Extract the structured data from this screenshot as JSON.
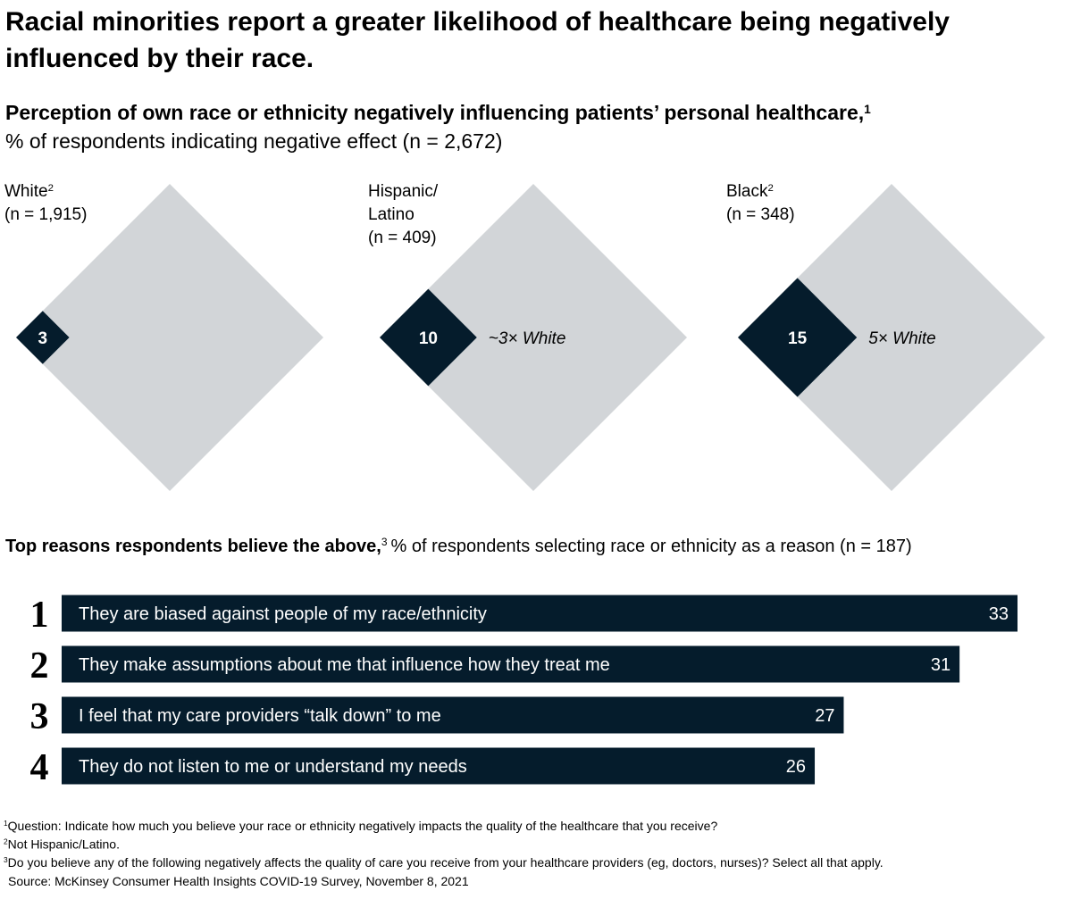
{
  "title": "Racial minorities report a greater likelihood of healthcare being negatively influenced by their race.",
  "chart_data": [
    {
      "type": "diamond",
      "title": "Perception of own race or ethnicity negatively influencing patients’ personal healthcare,",
      "title_note": "1",
      "subtitle": "% of respondents indicating negative effect (n = 2,672)",
      "categories": [
        [
          "White"
        ],
        [
          "Hispanic/",
          "Latino"
        ],
        [
          "Black"
        ]
      ],
      "category_notes": [
        "2",
        null,
        "2"
      ],
      "sample_sizes": [
        "(n = 1,915)",
        "(n = 409)",
        "(n = 348)"
      ],
      "values": [
        3,
        10,
        15
      ],
      "annotations": [
        null,
        "~3× White",
        "5× White"
      ],
      "ylim": [
        0,
        100
      ],
      "color": "#051c2c",
      "background_color": "#d2d5d8"
    },
    {
      "type": "bar",
      "title": "Top reasons respondents believe the above,",
      "title_note": "3",
      "subtitle": "% of respondents selecting race or ethnicity as a reason (n = 187)",
      "ranks": [
        "1",
        "2",
        "3",
        "4"
      ],
      "categories": [
        "They are biased against people of my race/ethnicity",
        "They make assumptions about me that influence how they treat me",
        "I feel that my care providers “talk down” to me",
        "They do not listen to me or understand my needs"
      ],
      "values": [
        33,
        31,
        27,
        26
      ],
      "xlim": [
        0,
        33
      ],
      "color": "#051c2c"
    }
  ],
  "footnotes": [
    {
      "marker": "1",
      "text": "Question: Indicate how much you believe your race or ethnicity negatively impacts the quality of the healthcare that you receive?"
    },
    {
      "marker": "2",
      "text": "Not Hispanic/Latino."
    },
    {
      "marker": "3",
      "text": "Do you believe any of the following negatively affects the quality of care you receive from your healthcare providers (eg, doctors, nurses)? Select all that apply."
    }
  ],
  "source": "Source: McKinsey Consumer Health Insights COVID-19 Survey, November 8, 2021"
}
